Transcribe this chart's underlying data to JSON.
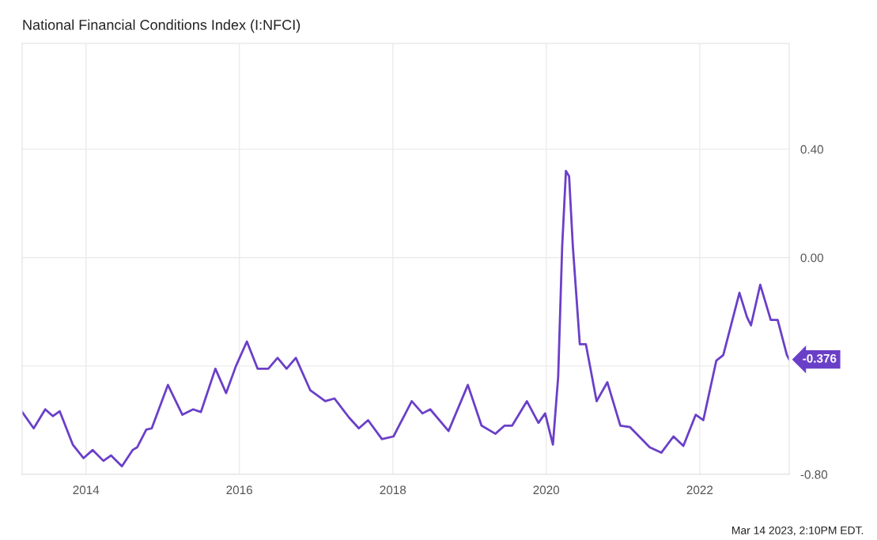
{
  "chart_data": {
    "type": "line",
    "title": "National Financial Conditions Index (I:NFCI)",
    "x": [
      "2013-03-03",
      "2013-04-27",
      "2013-06-21",
      "2013-07-27",
      "2013-08-29",
      "2013-10-30",
      "2013-12-20",
      "2014-02-02",
      "2014-03-25",
      "2014-04-30",
      "2014-06-21",
      "2014-08-11",
      "2014-09-02",
      "2014-10-15",
      "2014-11-10",
      "2015-01-26",
      "2015-04-05",
      "2015-05-26",
      "2015-07-02",
      "2015-09-09",
      "2015-10-30",
      "2015-12-16",
      "2016-02-06",
      "2016-03-28",
      "2016-05-18",
      "2016-07-01",
      "2016-08-13",
      "2016-09-26",
      "2016-12-04",
      "2017-02-13",
      "2017-03-29",
      "2017-06-06",
      "2017-07-23",
      "2017-09-05",
      "2017-11-10",
      "2018-01-04",
      "2018-04-01",
      "2018-05-22",
      "2018-06-28",
      "2018-09-23",
      "2018-12-24",
      "2019-02-27",
      "2019-05-04",
      "2019-06-17",
      "2019-07-23",
      "2019-10-01",
      "2019-11-25",
      "2019-12-27",
      "2020-02-02",
      "2020-02-27",
      "2020-03-17",
      "2020-04-04",
      "2020-04-19",
      "2020-05-07",
      "2020-06-09",
      "2020-07-08",
      "2020-08-28",
      "2020-10-18",
      "2020-12-19",
      "2021-02-02",
      "2021-05-08",
      "2021-07-02",
      "2021-08-29",
      "2021-10-15",
      "2021-12-13",
      "2022-01-18",
      "2022-03-21",
      "2022-04-23",
      "2022-07-09",
      "2022-08-14",
      "2022-09-02",
      "2022-10-16",
      "2022-12-05",
      "2023-01-07",
      "2023-02-20",
      "2023-03-03"
    ],
    "series": [
      {
        "color": "#6a3fc8",
        "values": [
          -0.57,
          -0.63,
          -0.56,
          -0.585,
          -0.567,
          -0.69,
          -0.74,
          -0.71,
          -0.75,
          -0.73,
          -0.77,
          -0.71,
          -0.7,
          -0.635,
          -0.63,
          -0.47,
          -0.58,
          -0.56,
          -0.57,
          -0.41,
          -0.5,
          -0.4,
          -0.31,
          -0.41,
          -0.41,
          -0.37,
          -0.41,
          -0.37,
          -0.49,
          -0.53,
          -0.52,
          -0.59,
          -0.63,
          -0.6,
          -0.67,
          -0.66,
          -0.53,
          -0.575,
          -0.56,
          -0.64,
          -0.47,
          -0.62,
          -0.65,
          -0.62,
          -0.62,
          -0.53,
          -0.61,
          -0.575,
          -0.69,
          -0.44,
          0.04,
          0.32,
          0.3,
          0.04,
          -0.32,
          -0.32,
          -0.53,
          -0.46,
          -0.62,
          -0.625,
          -0.7,
          -0.72,
          -0.66,
          -0.695,
          -0.58,
          -0.6,
          -0.38,
          -0.36,
          -0.13,
          -0.22,
          -0.25,
          -0.1,
          -0.23,
          -0.23,
          -0.36,
          -0.376
        ]
      }
    ],
    "xlim": [
      "2013-03-03",
      "2023-03-03"
    ],
    "xticks": [
      {
        "value": "2014-01-01",
        "label": "2014"
      },
      {
        "value": "2016-01-01",
        "label": "2016"
      },
      {
        "value": "2018-01-01",
        "label": "2018"
      },
      {
        "value": "2020-01-01",
        "label": "2020"
      },
      {
        "value": "2022-01-01",
        "label": "2022"
      }
    ],
    "ylim": [
      -0.8,
      0.79
    ],
    "yticks": [
      {
        "value": -0.8,
        "label": "-0.80"
      },
      {
        "value": -0.4,
        "label": null
      },
      {
        "value": 0,
        "label": "0.00"
      },
      {
        "value": 0.4,
        "label": "0.40"
      }
    ],
    "grid": true,
    "legend": false,
    "marker": "none",
    "line_style": "solid",
    "annotations": [
      {
        "text": "-0.376",
        "x": "2023-03-03",
        "y": -0.376
      },
      "Mar 14 2023, 2:10PM EDT."
    ]
  }
}
